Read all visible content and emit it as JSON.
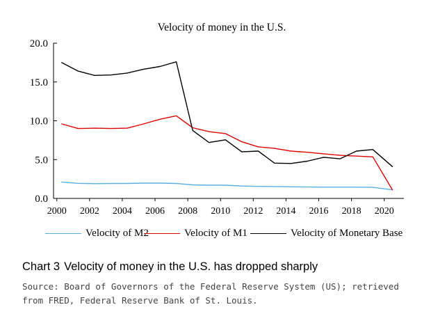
{
  "chart_data": {
    "type": "line",
    "title": "Velocity of money in the U.S.",
    "xlabel": "",
    "ylabel": "",
    "xlim": [
      1999.8,
      2021.2
    ],
    "ylim": [
      0,
      20
    ],
    "x_ticks": [
      2000,
      2002,
      2004,
      2006,
      2008,
      2010,
      2012,
      2014,
      2016,
      2018,
      2020
    ],
    "x_tick_labels": [
      "2000",
      "2002",
      "2004",
      "2006",
      "2008",
      "2010",
      "2012",
      "2014",
      "2016",
      "2018",
      "2020"
    ],
    "y_ticks": [
      0,
      5,
      10,
      15,
      20
    ],
    "y_tick_labels": [
      "0.0",
      "5.0",
      "10.0",
      "15.0",
      "20.0"
    ],
    "grid": false,
    "legend_position": "bottom",
    "series": [
      {
        "name": "Velocity of M2",
        "color": "#5aaee2",
        "x": [
          2000.3,
          2001.3,
          2002.3,
          2003.3,
          2004.3,
          2005.3,
          2006.3,
          2007.3,
          2008.3,
          2009.3,
          2010.3,
          2011.3,
          2012.3,
          2013.3,
          2014.3,
          2015.3,
          2016.3,
          2017.3,
          2018.3,
          2019.3,
          2020.5
        ],
        "values": [
          2.1,
          1.95,
          1.9,
          1.93,
          1.93,
          1.97,
          1.97,
          1.93,
          1.75,
          1.7,
          1.7,
          1.6,
          1.55,
          1.53,
          1.5,
          1.47,
          1.45,
          1.45,
          1.45,
          1.43,
          1.1
        ]
      },
      {
        "name": "Velocity of M1",
        "color": "#e00000",
        "x": [
          2000.3,
          2001.3,
          2002.3,
          2003.3,
          2004.3,
          2005.3,
          2006.3,
          2007.3,
          2008.3,
          2009.3,
          2010.3,
          2011.3,
          2012.3,
          2013.3,
          2014.3,
          2015.3,
          2016.3,
          2017.3,
          2018.3,
          2019.3,
          2020.5
        ],
        "values": [
          9.6,
          9.0,
          9.05,
          9.0,
          9.05,
          9.6,
          10.2,
          10.65,
          9.1,
          8.6,
          8.35,
          7.3,
          6.65,
          6.45,
          6.1,
          5.95,
          5.75,
          5.55,
          5.45,
          5.35,
          1.1
        ]
      },
      {
        "name": "Velocity of Monetary Base",
        "color": "#000000",
        "x": [
          2000.3,
          2001.3,
          2002.3,
          2003.3,
          2004.3,
          2005.3,
          2006.3,
          2007.3,
          2008.3,
          2009.3,
          2010.3,
          2011.3,
          2012.3,
          2013.3,
          2014.3,
          2015.3,
          2016.3,
          2017.3,
          2018.3,
          2019.3,
          2020.5
        ],
        "values": [
          17.5,
          16.4,
          15.85,
          15.9,
          16.15,
          16.65,
          17.0,
          17.6,
          8.75,
          7.2,
          7.55,
          6.0,
          6.1,
          4.55,
          4.5,
          4.8,
          5.3,
          5.1,
          6.1,
          6.3,
          4.1
        ]
      }
    ]
  },
  "caption": {
    "number": "Chart 3",
    "text": "Velocity of money in the U.S. has dropped sharply"
  },
  "source_note": "Source: Board of Governors of the Federal Reserve System (US); retrieved from FRED, Federal Reserve Bank of St. Louis."
}
